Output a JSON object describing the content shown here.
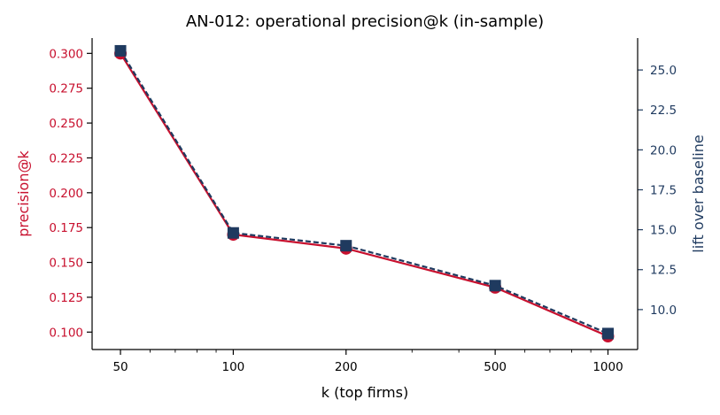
{
  "chart_data": {
    "type": "line",
    "title": "AN-012: operational precision@k (in-sample)",
    "xlabel": "k (top firms)",
    "ylabel": "precision@k",
    "y2label": "lift over baseline",
    "x_scale": "log",
    "xlim": [
      42,
      1200
    ],
    "ylim": [
      0.0875,
      0.311
    ],
    "y2lim": [
      7.5,
      27.0
    ],
    "x_ticks": [
      50,
      100,
      200,
      500,
      1000
    ],
    "x_tick_labels": [
      "50",
      "100",
      "200",
      "500",
      "1000"
    ],
    "y_ticks": [
      0.1,
      0.125,
      0.15,
      0.175,
      0.2,
      0.225,
      0.25,
      0.275,
      0.3
    ],
    "y_tick_labels": [
      "0.100",
      "0.125",
      "0.150",
      "0.175",
      "0.200",
      "0.225",
      "0.250",
      "0.275",
      "0.300"
    ],
    "y2_ticks": [
      10.0,
      12.5,
      15.0,
      17.5,
      20.0,
      22.5,
      25.0
    ],
    "y2_tick_labels": [
      "10.0",
      "12.5",
      "15.0",
      "17.5",
      "20.0",
      "22.5",
      "25.0"
    ],
    "x": [
      50,
      100,
      200,
      500,
      1000
    ],
    "series": [
      {
        "axis": "left",
        "color": "#c8102e",
        "marker": "circle",
        "linestyle": "solid",
        "values": [
          0.3,
          0.17,
          0.16,
          0.132,
          0.097
        ]
      },
      {
        "axis": "right",
        "color": "#1f3a5f",
        "marker": "square",
        "linestyle": "dashed",
        "values": [
          26.2,
          14.8,
          14.0,
          11.5,
          8.5
        ]
      }
    ],
    "grid": false
  }
}
